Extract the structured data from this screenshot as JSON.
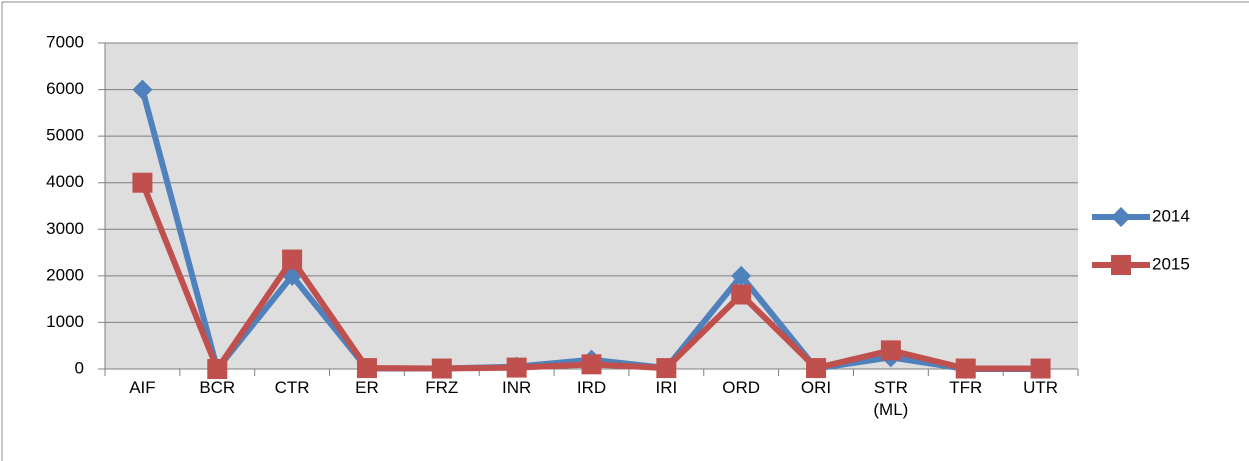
{
  "chart_data": {
    "type": "line",
    "categories": [
      "AIF",
      "BCR",
      "CTR",
      "ER",
      "FRZ",
      "INR",
      "IRD",
      "IRI",
      "ORD",
      "ORI",
      "STR (ML)",
      "TFR",
      "UTR"
    ],
    "series": [
      {
        "name": "2014",
        "color": "#4f81bd",
        "marker": "diamond",
        "values": [
          6000,
          0,
          2000,
          10,
          10,
          50,
          200,
          20,
          2000,
          10,
          250,
          0,
          0
        ]
      },
      {
        "name": "2015",
        "color": "#c0504d",
        "marker": "square",
        "values": [
          4000,
          0,
          2350,
          20,
          10,
          30,
          100,
          20,
          1600,
          20,
          400,
          10,
          10
        ]
      }
    ],
    "ylim": [
      0,
      7000
    ],
    "yticks": [
      0,
      1000,
      2000,
      3000,
      4000,
      5000,
      6000,
      7000
    ],
    "grid": true,
    "legend": "right"
  }
}
